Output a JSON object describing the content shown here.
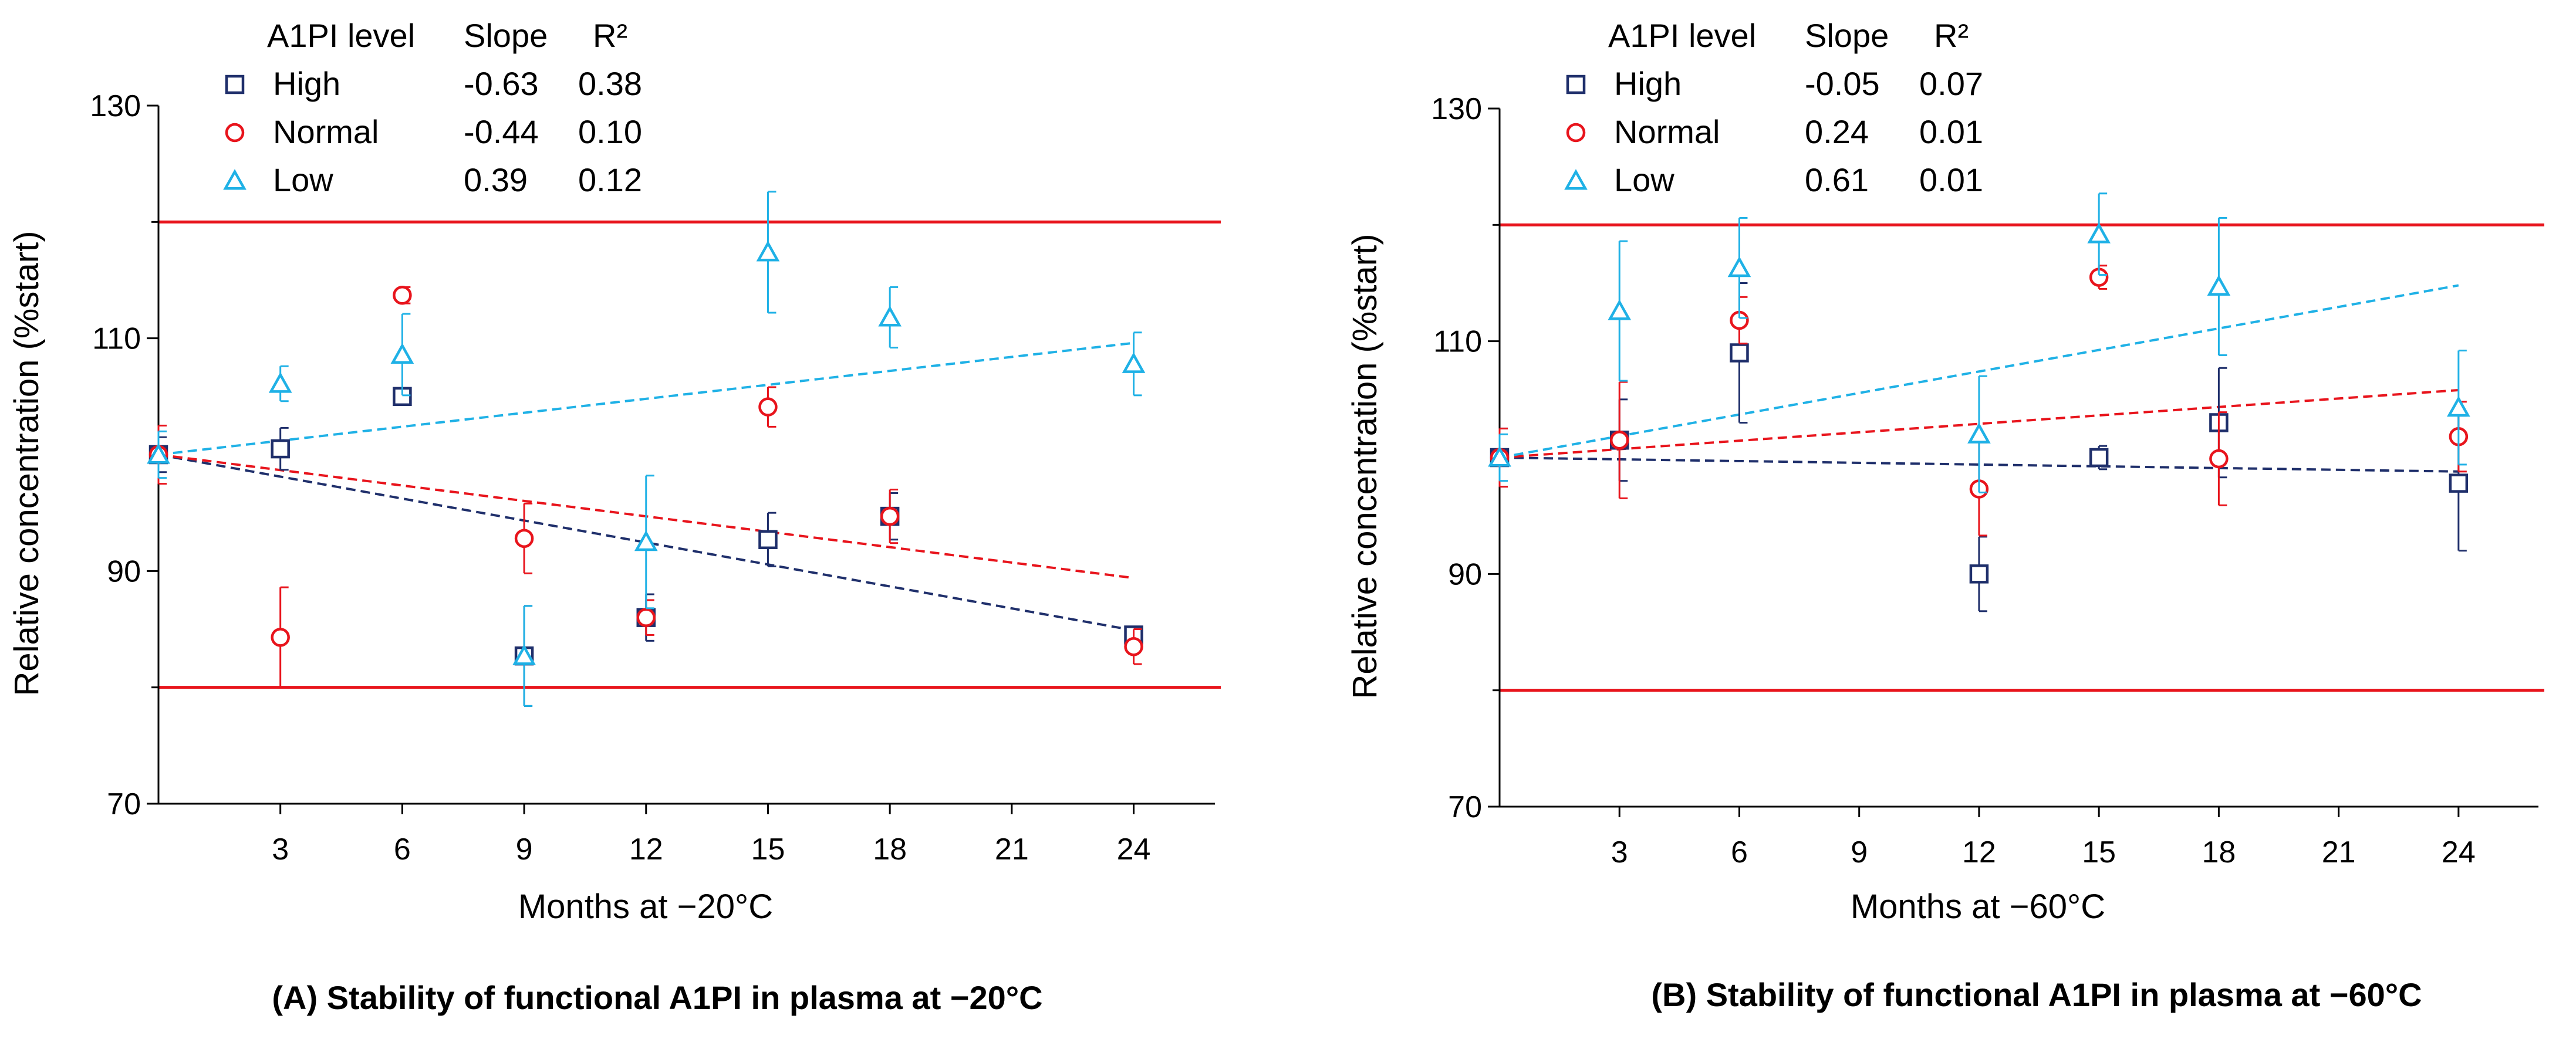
{
  "colors": {
    "high": "#1f2f6b",
    "normal": "#e8141c",
    "low": "#1fb1e6",
    "limit": "#e8141c",
    "axis": "#000000"
  },
  "chart_data": [
    {
      "type": "scatter",
      "caption": "(A) Stability of functional A1PI in plasma at −20°C",
      "xlabel": "Months at −20°C",
      "ylabel": "Relative concentration (%start)",
      "xlim": [
        0,
        26
      ],
      "ylim": [
        70,
        130
      ],
      "xticks": [
        "3",
        "6",
        "9",
        "12",
        "15",
        "18",
        "21",
        "24"
      ],
      "yticks": [
        "70",
        "90",
        "110",
        "130"
      ],
      "limit_lines": [
        80,
        120
      ],
      "legend_header": {
        "level": "A1PI level",
        "slope": "Slope",
        "r2": "R²"
      },
      "series": [
        {
          "name": "High",
          "marker": "square",
          "color_key": "high",
          "slope": "-0.63",
          "r2": "0.38",
          "x": [
            0,
            3,
            6,
            9,
            12,
            15,
            18,
            24
          ],
          "y": [
            100,
            100.5,
            105,
            82.7,
            86,
            92.7,
            94.7,
            84.5
          ],
          "err": [
            1.5,
            1.8,
            0.5,
            4.3,
            2,
            2.3,
            2,
            0.5
          ],
          "trend": [
            100,
            84.9
          ]
        },
        {
          "name": "Normal",
          "marker": "circle",
          "color_key": "normal",
          "slope": "-0.44",
          "r2": "0.10",
          "x": [
            0,
            3,
            6,
            9,
            12,
            15,
            18,
            24
          ],
          "y": [
            100,
            84.3,
            113.7,
            92.8,
            86,
            104.1,
            94.7,
            83.5
          ],
          "err": [
            2.5,
            4.3,
            0.7,
            3,
            1.5,
            1.7,
            2.3,
            1.5
          ],
          "trend": [
            100,
            89.4
          ]
        },
        {
          "name": "Low",
          "marker": "triangle",
          "color_key": "low",
          "slope": "0.39",
          "r2": "0.12",
          "x": [
            0,
            3,
            6,
            9,
            12,
            15,
            18,
            24
          ],
          "y": [
            100,
            106.1,
            108.6,
            82.7,
            92.5,
            117.4,
            111.8,
            107.8
          ],
          "err": [
            2,
            1.5,
            3.5,
            4.3,
            5.7,
            5.2,
            2.6,
            2.7
          ],
          "trend": [
            100,
            109.6
          ]
        }
      ]
    },
    {
      "type": "scatter",
      "caption": "(B) Stability of functional A1PI in plasma at −60°C",
      "xlabel": "Months at −60°C",
      "ylabel": "Relative concentration (%start)",
      "xlim": [
        0,
        26
      ],
      "ylim": [
        70,
        130
      ],
      "xticks": [
        "3",
        "6",
        "9",
        "12",
        "15",
        "18",
        "21",
        "24"
      ],
      "yticks": [
        "70",
        "90",
        "110",
        "130"
      ],
      "limit_lines": [
        80,
        120
      ],
      "legend_header": {
        "level": "A1PI level",
        "slope": "Slope",
        "r2": "R²"
      },
      "series": [
        {
          "name": "High",
          "marker": "square",
          "color_key": "high",
          "slope": "-0.05",
          "r2": "0.07",
          "x": [
            0,
            3,
            6,
            12,
            15,
            18,
            24
          ],
          "y": [
            100,
            101.5,
            109,
            90,
            100,
            103,
            97.8
          ],
          "err": [
            2.5,
            3.5,
            6,
            3.2,
            1,
            4.7,
            5.8
          ],
          "trend": [
            100,
            98.8
          ]
        },
        {
          "name": "Normal",
          "marker": "circle",
          "color_key": "normal",
          "slope": "0.24",
          "r2": "0.01",
          "x": [
            0,
            3,
            6,
            12,
            15,
            18,
            24
          ],
          "y": [
            100,
            101.5,
            111.8,
            97.3,
            115.5,
            99.9,
            101.8
          ],
          "err": [
            2.5,
            5,
            2,
            4,
            1,
            4,
            3
          ],
          "trend": [
            100,
            105.8
          ]
        },
        {
          "name": "Low",
          "marker": "triangle",
          "color_key": "low",
          "slope": "0.61",
          "r2": "0.01",
          "x": [
            0,
            3,
            6,
            12,
            15,
            18,
            24
          ],
          "y": [
            100,
            112.6,
            116.3,
            102,
            119.2,
            114.7,
            104.3
          ],
          "err": [
            2,
            6,
            4.3,
            5,
            3.5,
            5.9,
            4.9
          ],
          "trend": [
            100,
            114.8
          ]
        }
      ]
    }
  ]
}
